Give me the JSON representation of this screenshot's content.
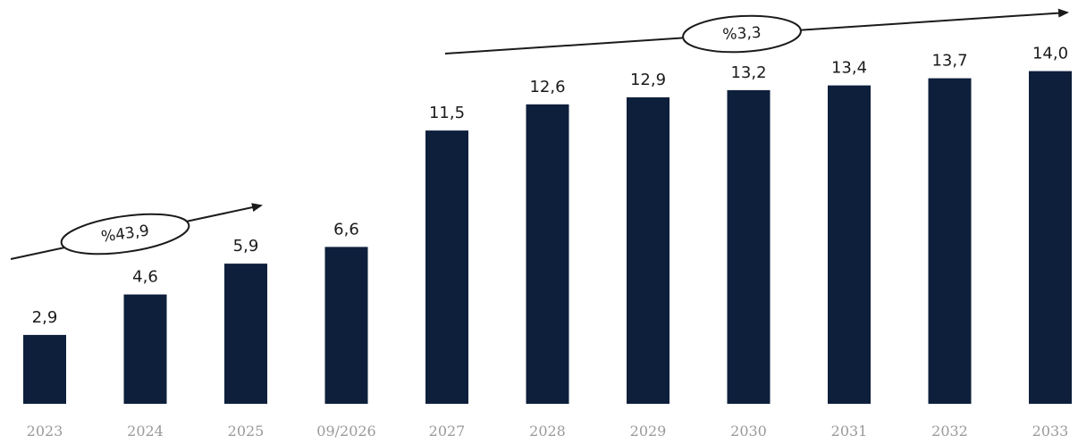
{
  "chart_data": {
    "type": "bar",
    "categories": [
      "2023",
      "2024",
      "2025",
      "09/2026",
      "2027",
      "2028",
      "2029",
      "2030",
      "2031",
      "2032",
      "2033"
    ],
    "values": [
      2.9,
      4.6,
      5.9,
      6.6,
      11.5,
      12.6,
      12.9,
      13.2,
      13.4,
      13.7,
      14.0
    ],
    "value_labels": [
      "2,9",
      "4,6",
      "5,9",
      "6,6",
      "11,5",
      "12,6",
      "12,9",
      "13,2",
      "13,4",
      "13,7",
      "14,0"
    ],
    "title": "",
    "xlabel": "",
    "ylabel": "",
    "ylim": [
      0,
      15
    ],
    "grid": false,
    "legend": "none",
    "bar_color": "#0d1f3b",
    "annotations": [
      {
        "label": "%43,9",
        "from_category": "2023",
        "to_category": "2025",
        "type": "growth-arrow"
      },
      {
        "label": "%3,3",
        "from_category": "2027",
        "to_category": "2033",
        "type": "growth-arrow"
      }
    ]
  }
}
